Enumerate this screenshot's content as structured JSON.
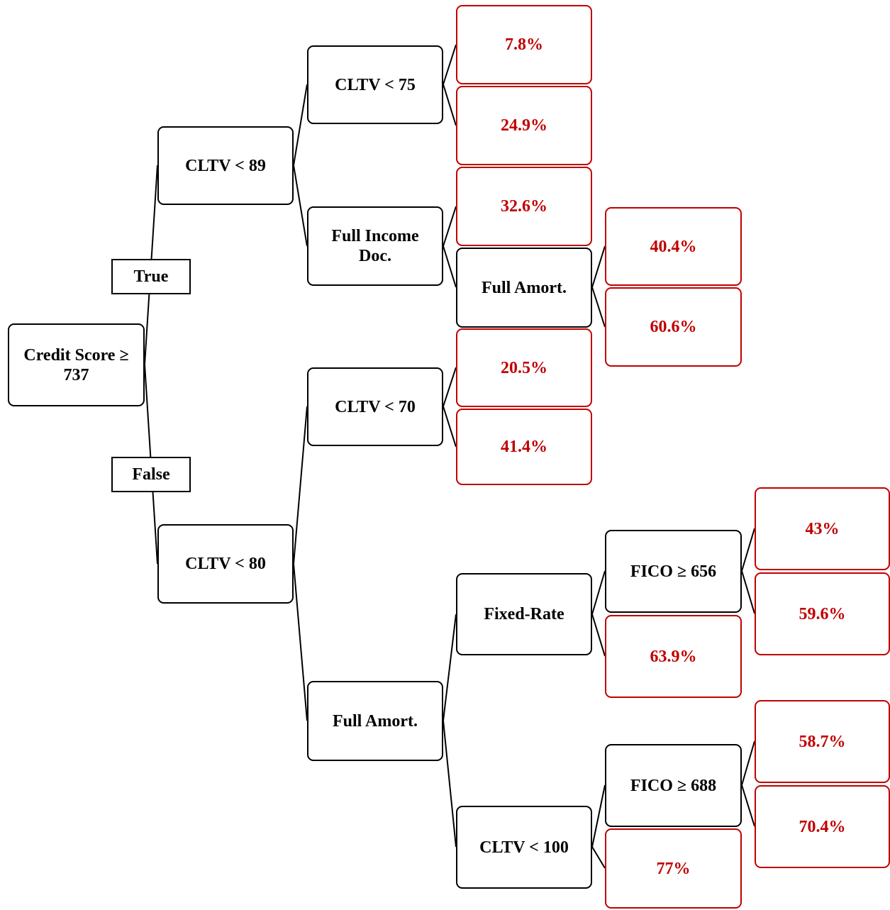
{
  "root": "Credit Score ≥ 737",
  "branch_labels": {
    "true": "True",
    "false": "False"
  },
  "nodes": {
    "cltv89": "CLTV < 89",
    "cltv80": "CLTV < 80",
    "cltv75": "CLTV < 75",
    "full_income_doc": "Full Income Doc.",
    "cltv70": "CLTV < 70",
    "full_amort_1": "Full Amort.",
    "full_amort_2": "Full Amort.",
    "fixed_rate": "Fixed-Rate",
    "cltv100": "CLTV < 100",
    "fico656": "FICO ≥ 656",
    "fico688": "FICO ≥ 688"
  },
  "leaves": {
    "l_7_8": "7.8%",
    "l_24_9": "24.9%",
    "l_32_6": "32.6%",
    "l_40_4": "40.4%",
    "l_60_6": "60.6%",
    "l_20_5": "20.5%",
    "l_41_4": "41.4%",
    "l_43": "43%",
    "l_59_6": "59.6%",
    "l_63_9": "63.9%",
    "l_58_7": "58.7%",
    "l_70_4": "70.4%",
    "l_77": "77%"
  },
  "colors": {
    "leaf": "#c00000",
    "node": "#000000",
    "background": "#ffffff"
  }
}
